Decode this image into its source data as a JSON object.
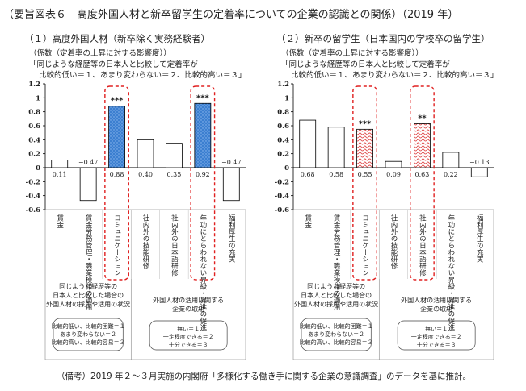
{
  "figure_title": "（要旨図表６　高度外国人材と新卒留学生の定着率についての企業の認識との関係）（2019 年）",
  "footnote": "（備考）2019 年２～３月実施の内閣府「多様化する働き手に関する企業の意識調査」のデータを基に推計。",
  "colors": {
    "accent_blue": "#3c7fd0",
    "accent_red_pattern": "#e05050",
    "bar_outline": "#000000",
    "highlight_dash": "#e02020"
  },
  "chart_data": [
    {
      "type": "bar",
      "title": "（１）高度外国人材（新卒除く実務経験者）",
      "coef_note": "（係数（定着率の上昇に対する影響度））",
      "scale_line1": "「同じような経歴等の日本人と比較して定着率が",
      "scale_line2": "比較的低い＝１、あまり変わらない＝２、比較的高い＝３」",
      "ylim": [
        -0.6,
        1.2
      ],
      "yticks": [
        "1.2",
        "1",
        "0.8",
        "0.6",
        "0.4",
        "0.2",
        "0",
        "-0.2",
        "-0.4",
        "-0.6"
      ],
      "ytick_values": [
        1.2,
        1.0,
        0.8,
        0.6,
        0.4,
        0.2,
        0,
        -0.2,
        -0.4,
        -0.6
      ],
      "categories": [
        "賃金",
        "賃金労務管理・職業模様の適用",
        "コミュニケーション",
        "社内外の技能研修",
        "社内外の日本語研修",
        "年功にとらわれない昇級・昇進の促進",
        "福利厚生の充実"
      ],
      "values": [
        0.11,
        -0.47,
        0.88,
        0.4,
        0.35,
        0.92,
        -0.47
      ],
      "labels": [
        "0.11",
        "−0.47",
        "0.88",
        "0.40",
        "0.35",
        "0.92",
        "−0.47"
      ],
      "significance": [
        "",
        "",
        "***",
        "",
        "",
        "***",
        ""
      ],
      "highlighted": [
        false,
        false,
        true,
        false,
        false,
        true,
        false
      ],
      "group1_heading": [
        "同じような経歴等の",
        "日本人と比較した場合の",
        "外国人材の採用や活用の状況"
      ],
      "group1_legend": [
        "比較的低い、比較的困難＝１",
        "あまり変わらない＝２",
        "比較的高い、比較的容易＝３"
      ],
      "group2_heading": [
        "外国人材の活用に関する",
        "企業の取組"
      ],
      "group2_legend": [
        "無い＝１",
        "一定程度できる＝２",
        "十分できる＝３"
      ]
    },
    {
      "type": "bar",
      "title": "（２）新卒の留学生（日本国内の学校卒の留学生）",
      "coef_note": "（係数（定着率の上昇に対する影響度））",
      "scale_line1": "「同じような経歴等の日本人と比較して定着率が",
      "scale_line2": "比較的低い＝１、あまり変わらない＝２、比較的高い＝３」",
      "ylim": [
        -0.6,
        1.2
      ],
      "yticks": [
        "1.2",
        "1",
        "0.8",
        "0.6",
        "0.4",
        "0.2",
        "0",
        "-0.2",
        "-0.4",
        "-0.6"
      ],
      "ytick_values": [
        1.2,
        1.0,
        0.8,
        0.6,
        0.4,
        0.2,
        0,
        -0.2,
        -0.4,
        -0.6
      ],
      "categories": [
        "賃金",
        "賃金労務管理・職業模様の適用",
        "コミュニケーション",
        "社内外の技能研修",
        "社内外の日本語研修",
        "年功にとらわれない昇級・昇進の促進",
        "福利厚生の充実"
      ],
      "values": [
        0.68,
        0.58,
        0.55,
        0.09,
        0.63,
        0.22,
        -0.13
      ],
      "labels": [
        "0.68",
        "0.58",
        "0.55",
        "0.09",
        "0.63",
        "0.22",
        "−0.13"
      ],
      "significance": [
        "",
        "",
        "***",
        "",
        "**",
        "",
        ""
      ],
      "highlighted": [
        false,
        false,
        true,
        false,
        true,
        false,
        false
      ],
      "group1_heading": [
        "同じような経歴等の",
        "日本人と比較した場合の",
        "外国人材の採用や活用の状況"
      ],
      "group1_legend": [
        "比較的低い、比較的困難＝１",
        "あまり変わらない＝２",
        "比較的高い、比較的容易＝３"
      ],
      "group2_heading": [
        "外国人材の活用に関する",
        "企業の取組"
      ],
      "group2_legend": [
        "無い＝１",
        "一定程度できる＝２",
        "十分できる＝３"
      ]
    }
  ]
}
